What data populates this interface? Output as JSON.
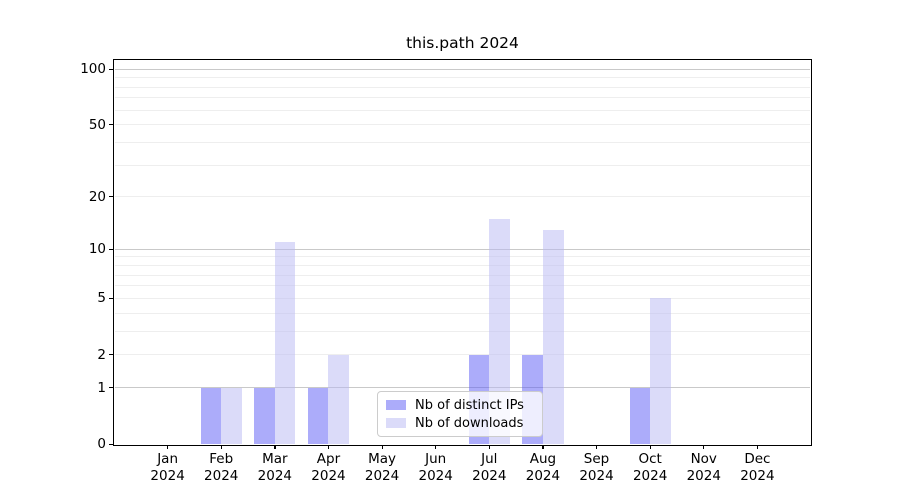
{
  "figure": {
    "title": "this.path 2024"
  },
  "chart_data": {
    "type": "bar",
    "title": "this.path 2024",
    "x_categories": [
      {
        "month": "Jan",
        "year": "2024"
      },
      {
        "month": "Feb",
        "year": "2024"
      },
      {
        "month": "Mar",
        "year": "2024"
      },
      {
        "month": "Apr",
        "year": "2024"
      },
      {
        "month": "May",
        "year": "2024"
      },
      {
        "month": "Jun",
        "year": "2024"
      },
      {
        "month": "Jul",
        "year": "2024"
      },
      {
        "month": "Aug",
        "year": "2024"
      },
      {
        "month": "Sep",
        "year": "2024"
      },
      {
        "month": "Oct",
        "year": "2024"
      },
      {
        "month": "Nov",
        "year": "2024"
      },
      {
        "month": "Dec",
        "year": "2024"
      }
    ],
    "series": [
      {
        "name": "Nb of distinct IPs",
        "key": "distinct-ips",
        "color": "#acacfa",
        "fill_rgba": "rgba(89,89,245,0.5)",
        "values": [
          0,
          1,
          1,
          1,
          0,
          0,
          2,
          2,
          0,
          1,
          0,
          0
        ]
      },
      {
        "name": "Nb of downloads",
        "key": "downloads",
        "color": "#dbdbf9",
        "fill_rgba": "rgba(183,183,243,0.5)",
        "values": [
          0,
          1,
          11,
          2,
          0,
          0,
          15,
          13,
          0,
          5,
          0,
          0
        ]
      }
    ],
    "xlabel": "",
    "ylabel": "",
    "yscale": "log1p",
    "ylim": [
      0,
      112
    ],
    "yticks": [
      0,
      1,
      2,
      5,
      10,
      20,
      50,
      100
    ],
    "grid": {
      "major": [
        1,
        10,
        100
      ],
      "minor": [
        2,
        3,
        4,
        5,
        6,
        7,
        8,
        9,
        20,
        30,
        40,
        50,
        60,
        70,
        80,
        90
      ],
      "major_color": "#c9c9c9",
      "minor_color": "#eeeeee"
    },
    "legend_position": "lower center"
  }
}
